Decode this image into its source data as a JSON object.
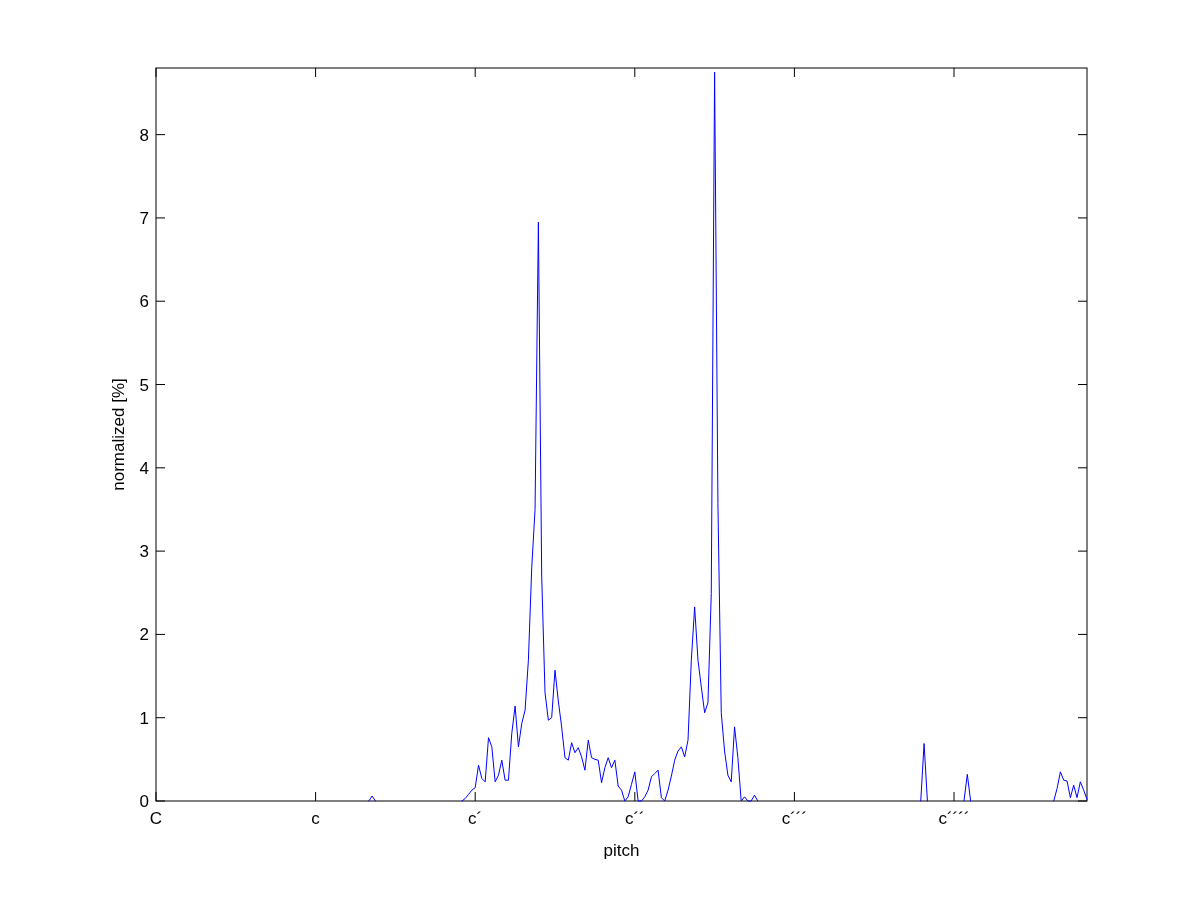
{
  "chart_data": {
    "type": "line",
    "xlabel": "pitch",
    "ylabel": "normalized [%]",
    "ylim": [
      0,
      8.8
    ],
    "yticks": [
      0,
      1,
      2,
      3,
      4,
      5,
      6,
      7,
      8
    ],
    "grid": false,
    "marker": "none",
    "line_style": "solid",
    "categories": [
      "C",
      null,
      null,
      null,
      null,
      null,
      null,
      null,
      null,
      null,
      null,
      null,
      null,
      null,
      null,
      null,
      null,
      null,
      null,
      null,
      null,
      null,
      null,
      null,
      null,
      null,
      null,
      null,
      null,
      null,
      null,
      null,
      null,
      null,
      null,
      null,
      null,
      null,
      null,
      null,
      null,
      null,
      null,
      null,
      null,
      null,
      null,
      null,
      "c",
      null,
      null,
      null,
      null,
      null,
      null,
      null,
      null,
      null,
      null,
      null,
      null,
      null,
      null,
      null,
      null,
      null,
      null,
      null,
      null,
      null,
      null,
      null,
      null,
      null,
      null,
      null,
      null,
      null,
      null,
      null,
      null,
      null,
      null,
      null,
      null,
      null,
      null,
      null,
      null,
      null,
      null,
      null,
      null,
      null,
      null,
      null,
      "c´",
      null,
      null,
      null,
      null,
      null,
      null,
      null,
      null,
      null,
      null,
      null,
      null,
      null,
      null,
      null,
      null,
      null,
      null,
      null,
      null,
      null,
      null,
      null,
      null,
      null,
      null,
      null,
      null,
      null,
      null,
      null,
      null,
      null,
      null,
      null,
      null,
      null,
      null,
      null,
      null,
      null,
      null,
      null,
      null,
      null,
      null,
      null,
      "c´´",
      null,
      null,
      null,
      null,
      null,
      null,
      null,
      null,
      null,
      null,
      null,
      null,
      null,
      null,
      null,
      null,
      null,
      null,
      null,
      null,
      null,
      null,
      null,
      null,
      null,
      null,
      null,
      null,
      null,
      null,
      null,
      null,
      null,
      null,
      null,
      null,
      null,
      null,
      null,
      null,
      null,
      null,
      null,
      null,
      null,
      null,
      null,
      "c´´´",
      null,
      null,
      null,
      null,
      null,
      null,
      null,
      null,
      null,
      null,
      null,
      null,
      null,
      null,
      null,
      null,
      null,
      null,
      null,
      null,
      null,
      null,
      null,
      null,
      null,
      null,
      null,
      null,
      null,
      null,
      null,
      null,
      null,
      null,
      null,
      null,
      null,
      null,
      null,
      null,
      null,
      null,
      null,
      null,
      null,
      null,
      null,
      "c´´´´",
      null,
      null,
      null,
      null,
      null,
      null,
      null,
      null,
      null,
      null,
      null,
      null,
      null,
      null,
      null,
      null,
      null,
      null,
      null,
      null,
      null,
      null,
      null,
      null,
      null,
      null,
      null,
      null,
      null,
      null,
      null,
      null,
      null,
      null,
      null,
      null,
      null,
      null,
      null,
      null
    ],
    "series": [
      {
        "color": "#0000ff",
        "values": [
          null,
          null,
          null,
          null,
          null,
          null,
          null,
          null,
          null,
          null,
          null,
          null,
          null,
          null,
          null,
          null,
          null,
          null,
          null,
          null,
          null,
          null,
          null,
          null,
          null,
          null,
          null,
          null,
          null,
          null,
          null,
          null,
          null,
          null,
          null,
          null,
          null,
          null,
          null,
          null,
          null,
          null,
          null,
          null,
          null,
          null,
          null,
          null,
          null,
          null,
          null,
          null,
          null,
          null,
          null,
          null,
          null,
          null,
          null,
          null,
          null,
          null,
          null,
          null,
          0,
          0.06,
          0,
          null,
          null,
          null,
          null,
          null,
          null,
          null,
          null,
          null,
          null,
          null,
          null,
          null,
          null,
          null,
          null,
          null,
          null,
          null,
          null,
          null,
          null,
          null,
          null,
          null,
          0,
          0.03,
          0.08,
          0.13,
          0.16,
          0.43,
          0.27,
          0.23,
          0.76,
          0.65,
          0.23,
          0.31,
          0.49,
          0.25,
          0.25,
          0.81,
          1.14,
          0.65,
          0.93,
          1.09,
          1.69,
          2.8,
          3.5,
          6.95,
          2.7,
          1.3,
          0.97,
          1.0,
          1.57,
          1.2,
          0.89,
          0.52,
          0.49,
          0.7,
          0.58,
          0.64,
          0.53,
          0.37,
          0.73,
          0.52,
          0.5,
          0.49,
          0.22,
          0.4,
          0.52,
          0.4,
          0.49,
          0.18,
          0.13,
          0,
          0.05,
          0.2,
          0.35,
          0,
          0,
          0.05,
          0.13,
          0.29,
          0.33,
          0.37,
          0.04,
          0,
          0.13,
          0.3,
          0.49,
          0.6,
          0.65,
          0.53,
          0.73,
          1.69,
          2.33,
          1.69,
          1.37,
          1.06,
          1.18,
          2.49,
          8.75,
          3.57,
          1.06,
          0.6,
          0.31,
          0.23,
          0.89,
          0.52,
          0,
          0.05,
          0,
          0,
          0.07,
          0,
          null,
          null,
          null,
          null,
          null,
          null,
          null,
          null,
          null,
          null,
          null,
          null,
          null,
          null,
          null,
          null,
          null,
          null,
          null,
          null,
          null,
          null,
          null,
          null,
          null,
          null,
          null,
          null,
          null,
          null,
          null,
          null,
          null,
          null,
          null,
          null,
          null,
          null,
          null,
          null,
          null,
          null,
          null,
          null,
          null,
          null,
          null,
          null,
          0,
          0.69,
          0,
          null,
          null,
          null,
          null,
          null,
          null,
          null,
          null,
          null,
          null,
          0,
          0.32,
          0,
          null,
          null,
          null,
          null,
          null,
          null,
          null,
          null,
          null,
          null,
          null,
          null,
          null,
          null,
          null,
          null,
          null,
          null,
          null,
          null,
          null,
          null,
          null,
          null,
          0,
          0.15,
          0.35,
          0.25,
          0.24,
          0.04,
          0.19,
          0.04,
          0.23,
          0.13,
          0.02
        ]
      }
    ]
  }
}
